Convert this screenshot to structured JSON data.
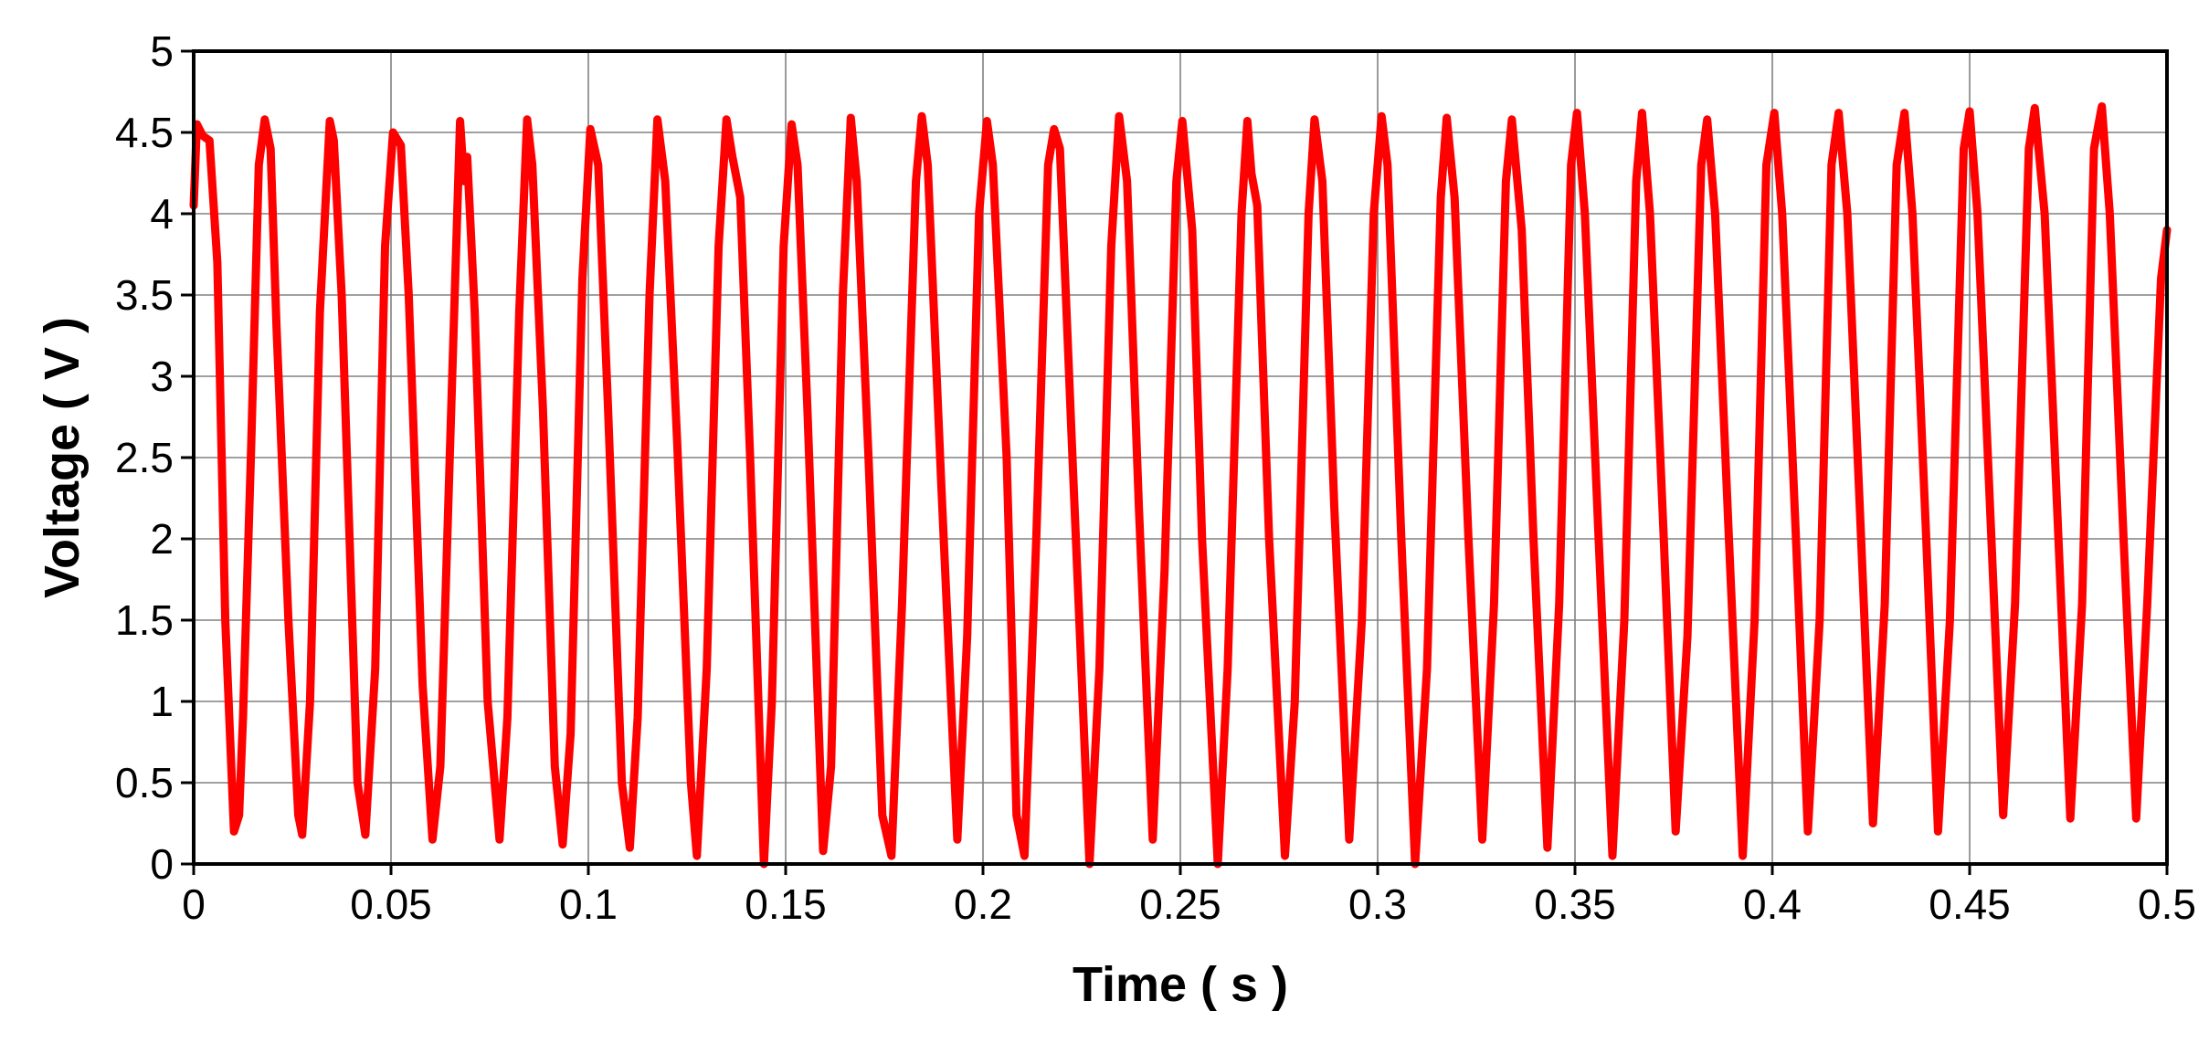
{
  "chart_data": {
    "type": "line",
    "title": "",
    "xlabel": "Time  ( s )",
    "ylabel": "Voltage ( V )",
    "xlim": [
      0,
      0.5
    ],
    "ylim": [
      0,
      5
    ],
    "x_ticks": [
      0,
      0.05,
      0.1,
      0.15,
      0.2,
      0.25,
      0.3,
      0.35,
      0.4,
      0.45,
      0.5
    ],
    "x_tick_labels": [
      "0",
      "0.05",
      "0.1",
      "0.15",
      "0.2",
      "0.25",
      "0.3",
      "0.35",
      "0.4",
      "0.45",
      "0.5"
    ],
    "y_ticks": [
      0,
      0.5,
      1,
      1.5,
      2,
      2.5,
      3,
      3.5,
      4,
      4.5,
      5
    ],
    "y_tick_labels": [
      "0",
      "0.5",
      "1",
      "1.5",
      "2",
      "2.5",
      "3",
      "3.5",
      "4",
      "4.5",
      "5"
    ],
    "grid": true,
    "legend": "none",
    "series": [
      {
        "color": "#ff0000",
        "points": [
          [
            0.0,
            4.05
          ],
          [
            0.0008,
            4.55
          ],
          [
            0.0023,
            4.48
          ],
          [
            0.004,
            4.45
          ],
          [
            0.006,
            3.7
          ],
          [
            0.008,
            1.5
          ],
          [
            0.0102,
            0.2
          ],
          [
            0.0115,
            0.3
          ],
          [
            0.0125,
            0.9
          ],
          [
            0.0145,
            2.5
          ],
          [
            0.0165,
            4.3
          ],
          [
            0.018,
            4.58
          ],
          [
            0.0195,
            4.4
          ],
          [
            0.021,
            3.3
          ],
          [
            0.024,
            1.5
          ],
          [
            0.0265,
            0.3
          ],
          [
            0.0275,
            0.18
          ],
          [
            0.0295,
            1.0
          ],
          [
            0.032,
            3.4
          ],
          [
            0.0345,
            4.57
          ],
          [
            0.0355,
            4.45
          ],
          [
            0.0375,
            3.5
          ],
          [
            0.0415,
            0.5
          ],
          [
            0.0435,
            0.18
          ],
          [
            0.046,
            1.2
          ],
          [
            0.0485,
            3.8
          ],
          [
            0.0505,
            4.5
          ],
          [
            0.0525,
            4.42
          ],
          [
            0.0545,
            3.5
          ],
          [
            0.058,
            1.1
          ],
          [
            0.0605,
            0.15
          ],
          [
            0.0625,
            0.6
          ],
          [
            0.0655,
            3.0
          ],
          [
            0.0675,
            4.57
          ],
          [
            0.0685,
            4.2
          ],
          [
            0.0693,
            4.35
          ],
          [
            0.0712,
            3.4
          ],
          [
            0.0745,
            1.0
          ],
          [
            0.0775,
            0.15
          ],
          [
            0.0795,
            0.9
          ],
          [
            0.0825,
            3.4
          ],
          [
            0.0845,
            4.58
          ],
          [
            0.0858,
            4.3
          ],
          [
            0.0885,
            2.8
          ],
          [
            0.0915,
            0.6
          ],
          [
            0.0935,
            0.12
          ],
          [
            0.0955,
            0.8
          ],
          [
            0.0985,
            3.6
          ],
          [
            0.1005,
            4.52
          ],
          [
            0.1025,
            4.3
          ],
          [
            0.105,
            2.8
          ],
          [
            0.1085,
            0.5
          ],
          [
            0.1105,
            0.1
          ],
          [
            0.1125,
            0.9
          ],
          [
            0.1155,
            3.5
          ],
          [
            0.1175,
            4.58
          ],
          [
            0.1195,
            4.2
          ],
          [
            0.1225,
            2.6
          ],
          [
            0.126,
            0.5
          ],
          [
            0.1275,
            0.05
          ],
          [
            0.13,
            1.2
          ],
          [
            0.133,
            3.8
          ],
          [
            0.135,
            4.58
          ],
          [
            0.1365,
            4.35
          ],
          [
            0.1385,
            4.1
          ],
          [
            0.141,
            2.5
          ],
          [
            0.1445,
            0.0
          ],
          [
            0.1465,
            1.0
          ],
          [
            0.1495,
            3.8
          ],
          [
            0.1515,
            4.55
          ],
          [
            0.153,
            4.3
          ],
          [
            0.1555,
            2.8
          ],
          [
            0.1595,
            0.08
          ],
          [
            0.1615,
            0.6
          ],
          [
            0.1645,
            3.5
          ],
          [
            0.1665,
            4.59
          ],
          [
            0.168,
            4.2
          ],
          [
            0.171,
            2.5
          ],
          [
            0.1745,
            0.3
          ],
          [
            0.1768,
            0.05
          ],
          [
            0.1795,
            1.6
          ],
          [
            0.183,
            4.2
          ],
          [
            0.1845,
            4.6
          ],
          [
            0.186,
            4.3
          ],
          [
            0.1895,
            2.3
          ],
          [
            0.1935,
            0.15
          ],
          [
            0.196,
            1.4
          ],
          [
            0.199,
            4.0
          ],
          [
            0.201,
            4.57
          ],
          [
            0.2025,
            4.3
          ],
          [
            0.206,
            2.5
          ],
          [
            0.2085,
            0.3
          ],
          [
            0.2105,
            0.05
          ],
          [
            0.2135,
            2.0
          ],
          [
            0.2165,
            4.3
          ],
          [
            0.218,
            4.52
          ],
          [
            0.2195,
            4.4
          ],
          [
            0.2225,
            2.6
          ],
          [
            0.227,
            0.0
          ],
          [
            0.2295,
            1.2
          ],
          [
            0.2325,
            3.8
          ],
          [
            0.2345,
            4.6
          ],
          [
            0.2365,
            4.2
          ],
          [
            0.2395,
            2.2
          ],
          [
            0.243,
            0.15
          ],
          [
            0.246,
            1.8
          ],
          [
            0.249,
            4.2
          ],
          [
            0.2505,
            4.57
          ],
          [
            0.253,
            3.9
          ],
          [
            0.2555,
            2.0
          ],
          [
            0.2595,
            0.0
          ],
          [
            0.262,
            1.2
          ],
          [
            0.2655,
            4.0
          ],
          [
            0.267,
            4.57
          ],
          [
            0.268,
            4.25
          ],
          [
            0.2695,
            4.05
          ],
          [
            0.2725,
            2.0
          ],
          [
            0.2765,
            0.05
          ],
          [
            0.279,
            1.0
          ],
          [
            0.2825,
            4.0
          ],
          [
            0.284,
            4.58
          ],
          [
            0.286,
            4.2
          ],
          [
            0.289,
            2.2
          ],
          [
            0.2928,
            0.15
          ],
          [
            0.296,
            1.5
          ],
          [
            0.299,
            4.0
          ],
          [
            0.301,
            4.6
          ],
          [
            0.3025,
            4.3
          ],
          [
            0.306,
            2.0
          ],
          [
            0.3095,
            0.0
          ],
          [
            0.3125,
            1.2
          ],
          [
            0.316,
            4.1
          ],
          [
            0.3175,
            4.59
          ],
          [
            0.3195,
            4.1
          ],
          [
            0.323,
            2.0
          ],
          [
            0.3265,
            0.15
          ],
          [
            0.3295,
            1.6
          ],
          [
            0.3325,
            4.2
          ],
          [
            0.334,
            4.58
          ],
          [
            0.3365,
            3.9
          ],
          [
            0.3395,
            2.0
          ],
          [
            0.343,
            0.1
          ],
          [
            0.346,
            1.6
          ],
          [
            0.349,
            4.3
          ],
          [
            0.3505,
            4.62
          ],
          [
            0.3525,
            4.0
          ],
          [
            0.356,
            2.0
          ],
          [
            0.3595,
            0.05
          ],
          [
            0.3625,
            1.5
          ],
          [
            0.3655,
            4.2
          ],
          [
            0.367,
            4.62
          ],
          [
            0.369,
            4.0
          ],
          [
            0.3725,
            2.0
          ],
          [
            0.3755,
            0.2
          ],
          [
            0.3785,
            1.4
          ],
          [
            0.382,
            4.3
          ],
          [
            0.3835,
            4.58
          ],
          [
            0.3855,
            4.0
          ],
          [
            0.389,
            2.0
          ],
          [
            0.3925,
            0.05
          ],
          [
            0.3955,
            1.5
          ],
          [
            0.3985,
            4.3
          ],
          [
            0.4005,
            4.62
          ],
          [
            0.4025,
            4.0
          ],
          [
            0.406,
            2.0
          ],
          [
            0.409,
            0.2
          ],
          [
            0.412,
            1.5
          ],
          [
            0.415,
            4.3
          ],
          [
            0.4168,
            4.62
          ],
          [
            0.419,
            4.0
          ],
          [
            0.4225,
            2.0
          ],
          [
            0.4255,
            0.25
          ],
          [
            0.4285,
            1.6
          ],
          [
            0.4315,
            4.3
          ],
          [
            0.4335,
            4.62
          ],
          [
            0.4355,
            4.0
          ],
          [
            0.439,
            2.0
          ],
          [
            0.442,
            0.2
          ],
          [
            0.445,
            1.5
          ],
          [
            0.4485,
            4.4
          ],
          [
            0.45,
            4.63
          ],
          [
            0.452,
            4.0
          ],
          [
            0.4555,
            2.0
          ],
          [
            0.4585,
            0.3
          ],
          [
            0.4615,
            1.6
          ],
          [
            0.465,
            4.4
          ],
          [
            0.4665,
            4.65
          ],
          [
            0.469,
            4.0
          ],
          [
            0.4725,
            2.0
          ],
          [
            0.4755,
            0.28
          ],
          [
            0.4785,
            1.6
          ],
          [
            0.4815,
            4.4
          ],
          [
            0.4835,
            4.66
          ],
          [
            0.4855,
            4.0
          ],
          [
            0.489,
            2.0
          ],
          [
            0.4922,
            0.28
          ],
          [
            0.495,
            1.6
          ],
          [
            0.4985,
            3.6
          ],
          [
            0.5,
            3.9
          ]
        ]
      }
    ]
  }
}
